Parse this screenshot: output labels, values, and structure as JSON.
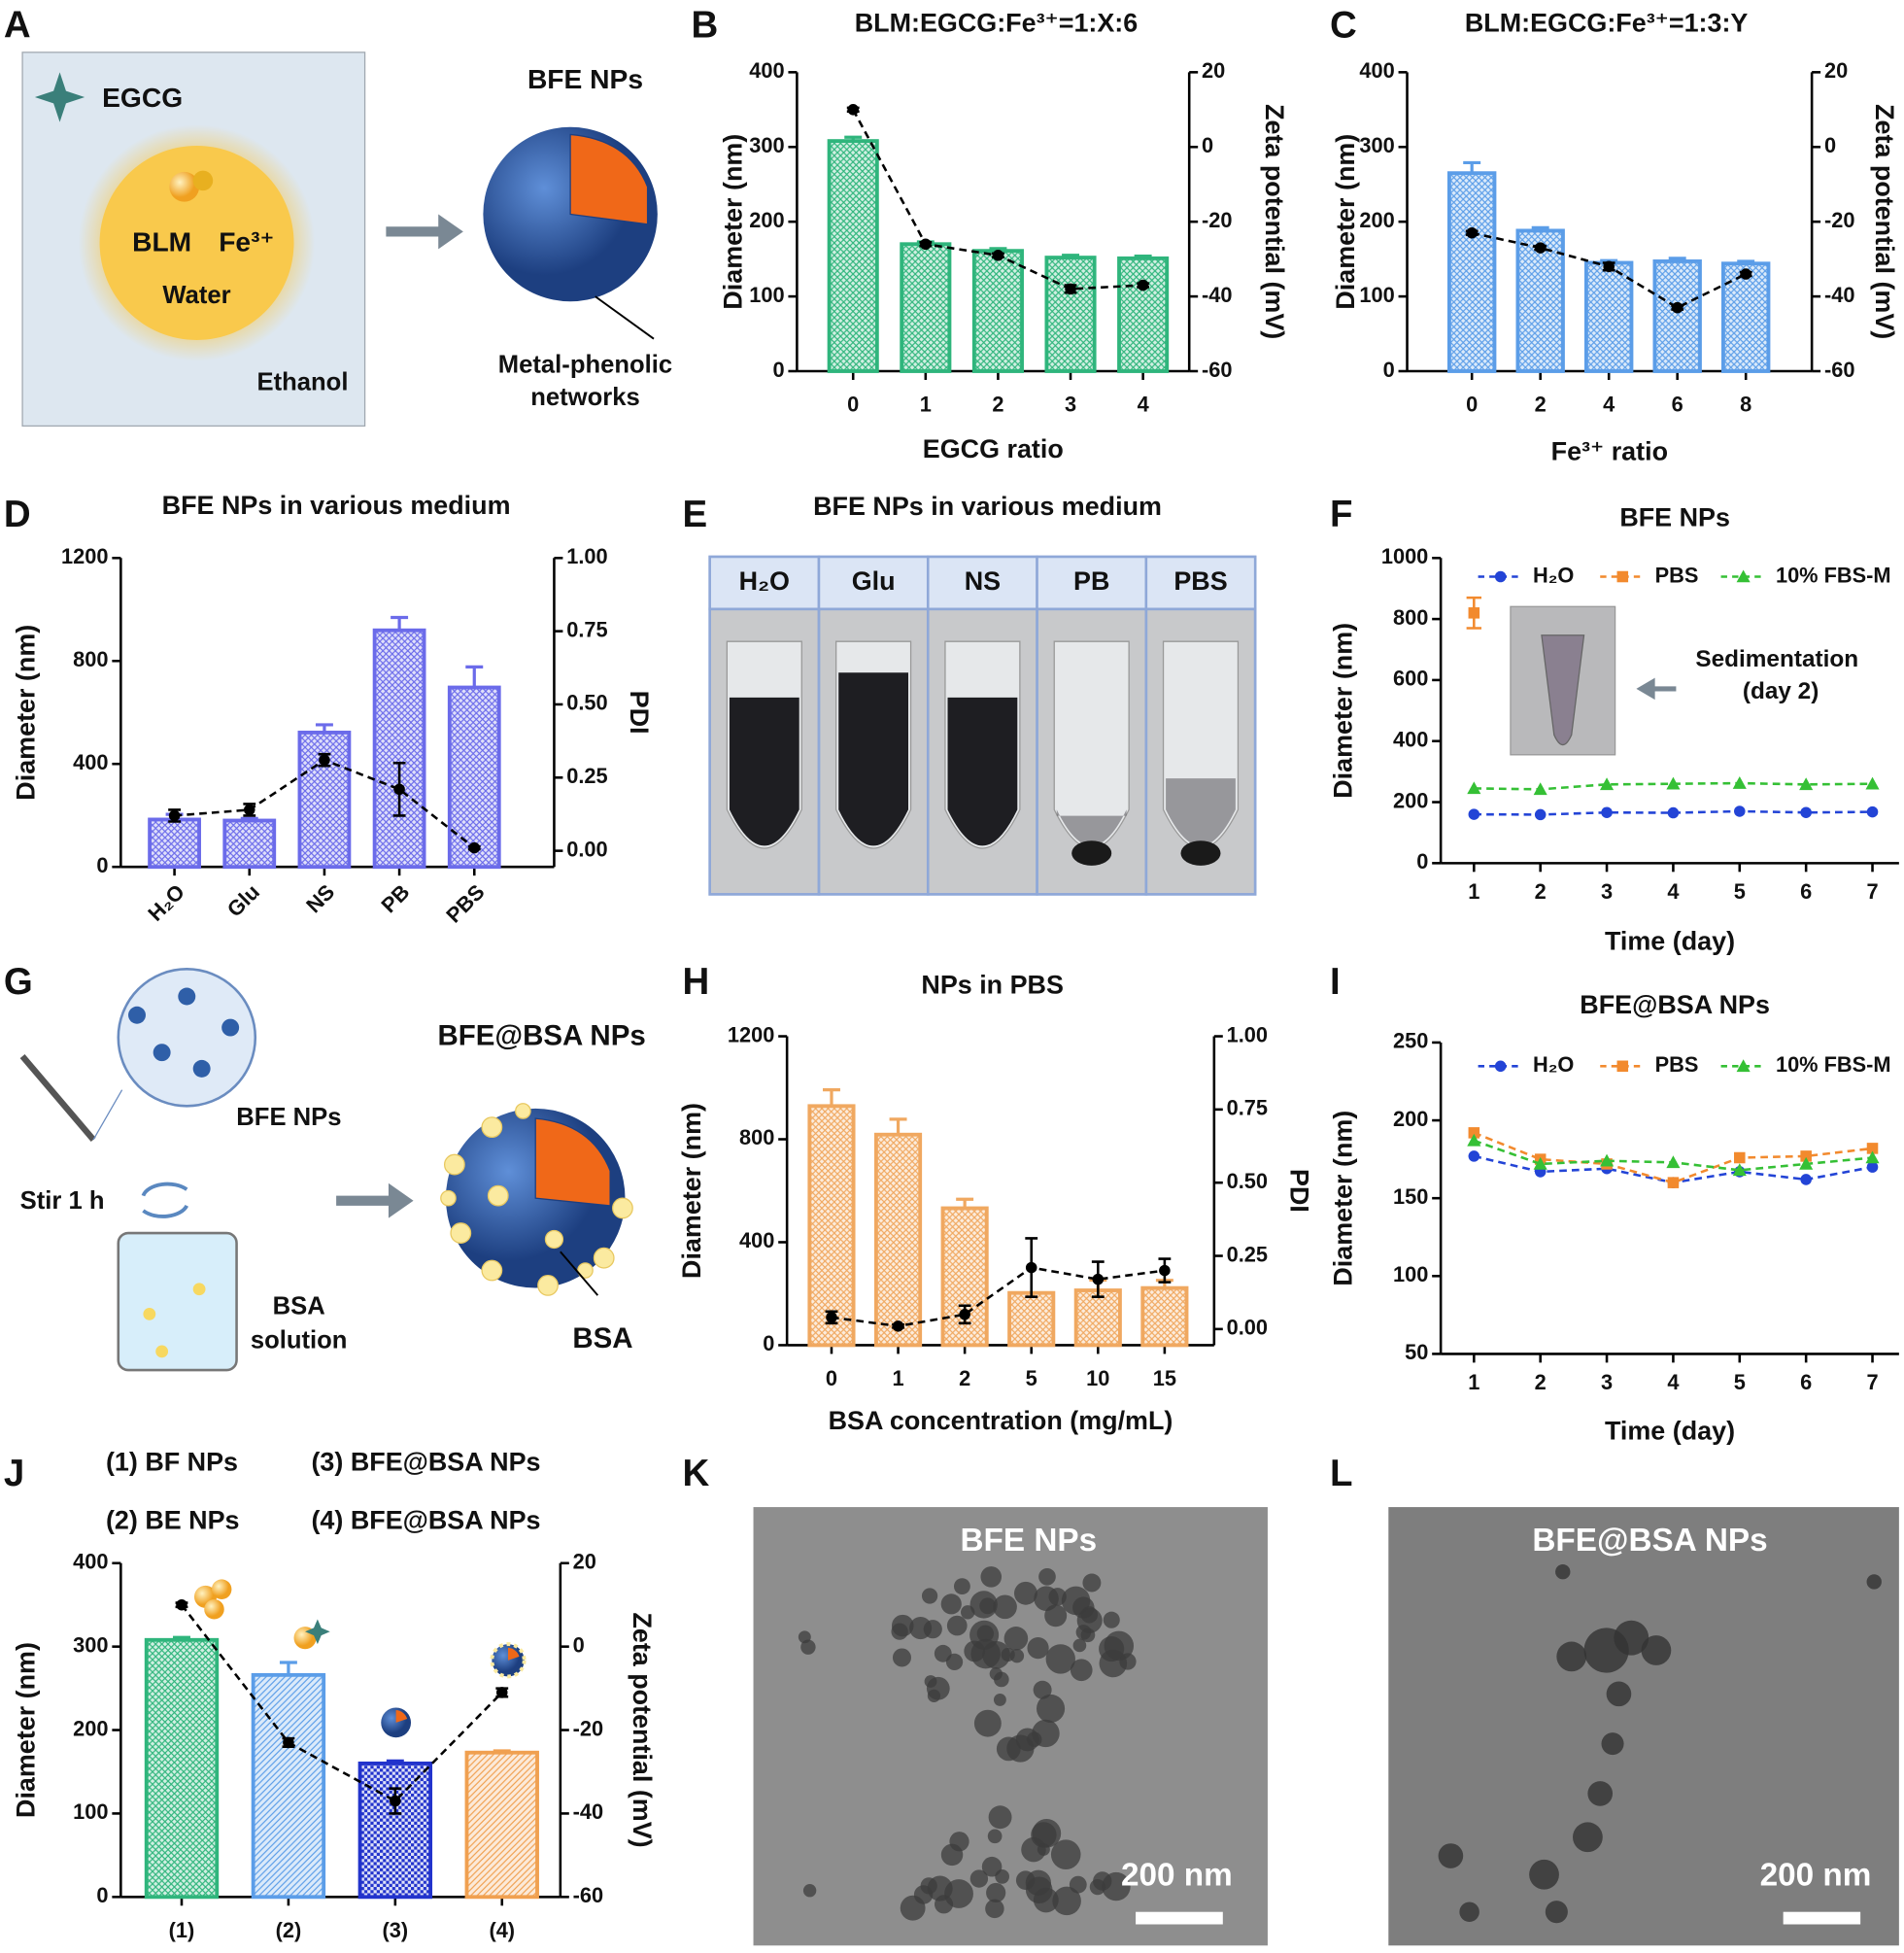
{
  "panel_labels": [
    "A",
    "B",
    "C",
    "D",
    "E",
    "F",
    "G",
    "H",
    "I",
    "J",
    "K",
    "L"
  ],
  "panel_a": {
    "egcg": "EGCG",
    "blm": "BLM",
    "fe": "Fe³⁺",
    "water": "Water",
    "ethanol": "Ethanol",
    "product": "BFE NPs",
    "shell": [
      "Metal-phenolic",
      "networks"
    ]
  },
  "panel_e": {
    "title": "BFE NPs in various medium",
    "tubes": [
      "H₂O",
      "Glu",
      "NS",
      "PB",
      "PBS"
    ]
  },
  "panel_g": {
    "loaded": "BFE NPs",
    "stir": "Stir 1 h",
    "solution": [
      "BSA",
      "solution"
    ],
    "product": "BFE@BSA NPs",
    "coat": "BSA"
  },
  "panel_k": {
    "title": "BFE NPs",
    "scale": "200 nm"
  },
  "panel_l": {
    "title": "BFE@BSA NPs",
    "scale": "200 nm"
  },
  "chart_data": [
    {
      "type": "bar",
      "title": "BLM:EGCG:Fe³⁺=1:X:6",
      "xlabel": "EGCG ratio",
      "ylabel": "Diameter (nm)",
      "y2label": "Zeta potential (mV)",
      "categories": [
        "0",
        "1",
        "2",
        "3",
        "4"
      ],
      "ylim": [
        0,
        400
      ],
      "yticks": [
        0,
        100,
        200,
        300,
        400
      ],
      "y2lim": [
        -60,
        20
      ],
      "y2ticks": [
        -60,
        -40,
        -20,
        0,
        20
      ],
      "series": [
        {
          "color": "#2fb57c",
          "values": [
            308,
            170,
            161,
            152,
            151
          ],
          "errors": [
            5,
            3,
            3,
            3,
            3
          ]
        },
        {
          "axis": "y2",
          "color": "#000000",
          "values": [
            10,
            -26,
            -29,
            -38,
            -37
          ],
          "errors": [
            0.5,
            0.5,
            0.5,
            1,
            0.5
          ]
        }
      ]
    },
    {
      "type": "bar",
      "title": "BLM:EGCG:Fe³⁺=1:3:Y",
      "xlabel": "Fe³⁺ ratio",
      "ylabel": "Diameter (nm)",
      "y2label": "Zeta potential (mV)",
      "categories": [
        "0",
        "2",
        "4",
        "6",
        "8"
      ],
      "ylim": [
        0,
        400
      ],
      "yticks": [
        0,
        100,
        200,
        300,
        400
      ],
      "y2lim": [
        -60,
        20
      ],
      "y2ticks": [
        -60,
        -40,
        -20,
        0,
        20
      ],
      "series": [
        {
          "color": "#5b9de8",
          "values": [
            265,
            188,
            145,
            147,
            144
          ],
          "errors": [
            14,
            4,
            3,
            4,
            3
          ]
        },
        {
          "axis": "y2",
          "color": "#000000",
          "values": [
            -23,
            -27,
            -32,
            -43,
            -34
          ],
          "errors": [
            0.5,
            0.5,
            1,
            0.5,
            0.5
          ]
        }
      ]
    },
    {
      "type": "bar",
      "title": "BFE NPs in various medium",
      "ylabel": "Diameter (nm)",
      "y2label": "PDI",
      "categories": [
        "H₂O",
        "Glu",
        "NS",
        "PB",
        "PBS"
      ],
      "ylim": [
        0,
        1200
      ],
      "yticks": [
        0,
        400,
        800,
        1200
      ],
      "y2lim": [
        -0.055,
        1
      ],
      "y2ticks": [
        {
          "value": 0,
          "label": "0.00"
        },
        0.25,
        {
          "value": 0.5,
          "label": "0.50"
        },
        0.75,
        {
          "value": 1,
          "label": "1.00"
        }
      ],
      "series": [
        {
          "color": "#6b6bea",
          "values": [
            184,
            180,
            522,
            919,
            697
          ],
          "errors": [
            20,
            8,
            30,
            50,
            80
          ]
        },
        {
          "axis": "y2",
          "color": "#000000",
          "values": [
            0.12,
            0.14,
            0.31,
            0.21,
            0.01
          ],
          "errors": [
            0.02,
            0.02,
            0.02,
            0.09,
            0.005
          ]
        }
      ]
    },
    {
      "type": "line",
      "title": "BFE NPs",
      "xlabel": "Time (day)",
      "ylabel": "Diameter (nm)",
      "x": [
        1,
        2,
        3,
        4,
        5,
        6,
        7
      ],
      "xlim": [
        0.5,
        7.4
      ],
      "xticks": [
        1,
        2,
        3,
        4,
        5,
        6,
        7
      ],
      "ylim": [
        0,
        1000
      ],
      "yticks": [
        0,
        200,
        400,
        600,
        800,
        1000
      ],
      "legend": "top",
      "annotation": [
        "Sedimentation",
        "(day 2)"
      ],
      "series": [
        {
          "name": "H₂O",
          "color": "#2344d6",
          "marker": "circle",
          "values": [
            160,
            159,
            166,
            165,
            170,
            166,
            168
          ]
        },
        {
          "name": "PBS",
          "color": "#f28a2e",
          "marker": "square",
          "values": [
            820,
            null,
            null,
            null,
            null,
            null,
            null
          ],
          "errors": [
            50,
            null,
            null,
            null,
            null,
            null,
            null
          ]
        },
        {
          "name": "10% FBS-M",
          "color": "#35c035",
          "marker": "triangle",
          "values": [
            245,
            242,
            258,
            260,
            262,
            258,
            260
          ]
        }
      ]
    },
    {
      "type": "bar",
      "title": "NPs in PBS",
      "xlabel": "BSA concentration (mg/mL)",
      "ylabel": "Diameter (nm)",
      "y2label": "PDI",
      "categories": [
        "0",
        "1",
        "2",
        "5",
        "10",
        "15"
      ],
      "ylim": [
        0,
        1200
      ],
      "yticks": [
        0,
        400,
        800,
        1200
      ],
      "y2lim": [
        -0.055,
        1
      ],
      "y2ticks": [
        {
          "value": 0,
          "label": "0.00"
        },
        0.25,
        {
          "value": 0.5,
          "label": "0.50"
        },
        0.75,
        {
          "value": 1,
          "label": "1.00"
        }
      ],
      "series": [
        {
          "color": "#f0a860",
          "values": [
            929,
            818,
            532,
            203,
            213,
            222
          ],
          "errors": [
            63,
            60,
            35,
            0,
            40,
            30
          ]
        },
        {
          "axis": "y2",
          "color": "#000000",
          "values": [
            0.04,
            0.01,
            0.05,
            0.21,
            0.17,
            0.2
          ],
          "errors": [
            0.02,
            0.005,
            0.03,
            0.1,
            0.06,
            0.04
          ]
        }
      ]
    },
    {
      "type": "line",
      "title": "BFE@BSA NPs",
      "xlabel": "Time (day)",
      "ylabel": "Diameter (nm)",
      "x": [
        1,
        2,
        3,
        4,
        5,
        6,
        7
      ],
      "xlim": [
        0.5,
        7.4
      ],
      "xticks": [
        1,
        2,
        3,
        4,
        5,
        6,
        7
      ],
      "ylim": [
        50,
        250
      ],
      "yticks": [
        50,
        100,
        150,
        200,
        250
      ],
      "legend": "top",
      "series": [
        {
          "name": "H₂O",
          "color": "#2344d6",
          "marker": "circle",
          "values": [
            177,
            167,
            169,
            160,
            167,
            162,
            170
          ]
        },
        {
          "name": "PBS",
          "color": "#f28a2e",
          "marker": "square",
          "values": [
            192,
            175,
            172,
            160,
            176,
            177,
            182
          ]
        },
        {
          "name": "10% FBS-M",
          "color": "#35c035",
          "marker": "triangle",
          "values": [
            187,
            172,
            174,
            173,
            168,
            172,
            176
          ]
        }
      ]
    },
    {
      "type": "bar",
      "ylabel": "Diameter (nm)",
      "y2label": "Zeta potential (mV)",
      "key": [
        "(1) BF NPs",
        "(2) BE NPs",
        "(3) BFE@BSA NPs",
        "(4) BFE@BSA NPs"
      ],
      "categories": [
        "(1)",
        "(2)",
        "(3)",
        "(4)"
      ],
      "ylim": [
        0,
        400
      ],
      "yticks": [
        0,
        100,
        200,
        300,
        400
      ],
      "y2lim": [
        -60,
        20
      ],
      "y2ticks": [
        -60,
        -40,
        -20,
        0,
        20
      ],
      "series": [
        {
          "colors": [
            "#2fb57c",
            "#5b9de8",
            "#2233cc",
            "#f0a050"
          ],
          "values": [
            308,
            266,
            160,
            173
          ],
          "errors": [
            3,
            15,
            3,
            2
          ]
        },
        {
          "axis": "y2",
          "color": "#000000",
          "values": [
            10,
            -23,
            -37,
            -11
          ],
          "errors": [
            0.5,
            1,
            3,
            1
          ]
        }
      ]
    }
  ]
}
